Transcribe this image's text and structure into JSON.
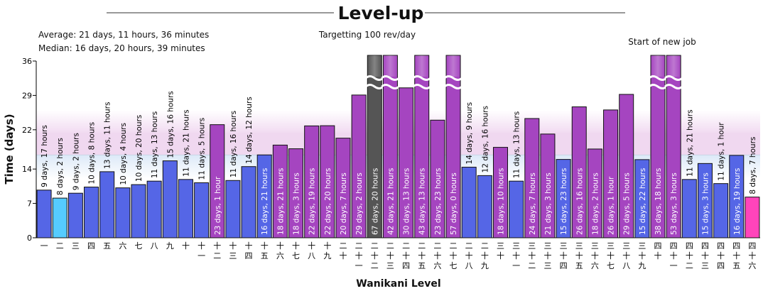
{
  "chart_data": {
    "type": "bar",
    "title": "Level-up",
    "xlabel": "Wanikani Level",
    "ylabel": "Time (days)",
    "ylim": [
      0,
      36
    ],
    "yticks": [
      "0",
      "7",
      "14",
      "22",
      "29",
      "36"
    ],
    "stats": {
      "average": "Average: 21 days, 11 hours, 36 minutes",
      "median": "Median: 16 days, 20 hours, 39 minutes"
    },
    "annotations": {
      "target": "Targetting 100 rev/day",
      "new_job": "Start of new job"
    },
    "colors": {
      "fast": "#5566e6",
      "slow": "#a545c0",
      "max": "#555555",
      "current": "#ff44bb",
      "fastest": "#55ccff",
      "average_band": "#f0d8f0",
      "median_band": "#d8e8f8"
    },
    "bars": [
      {
        "level": "一",
        "days": 9.71,
        "label": "9 days, 17 hours",
        "cat": "fast"
      },
      {
        "level": "二",
        "days": 8.08,
        "label": "8 days, 2 hours",
        "cat": "fastest"
      },
      {
        "level": "三",
        "days": 9.08,
        "label": "9 days, 2 hours",
        "cat": "fast"
      },
      {
        "level": "四",
        "days": 10.33,
        "label": "10 days, 8 hours",
        "cat": "fast"
      },
      {
        "level": "五",
        "days": 13.46,
        "label": "13 days, 11 hours",
        "cat": "fast"
      },
      {
        "level": "六",
        "days": 10.17,
        "label": "10 days, 4 hours",
        "cat": "fast"
      },
      {
        "level": "七",
        "days": 10.83,
        "label": "10 days, 20 hours",
        "cat": "fast"
      },
      {
        "level": "八",
        "days": 11.54,
        "label": "11 days, 13 hours",
        "cat": "fast"
      },
      {
        "level": "九",
        "days": 15.67,
        "label": "15 days, 16 hours",
        "cat": "fast"
      },
      {
        "level": "十",
        "days": 11.88,
        "label": "11 days, 21 hours",
        "cat": "fast"
      },
      {
        "level": "十一",
        "days": 11.21,
        "label": "11 days, 5 hours",
        "cat": "fast"
      },
      {
        "level": "十二",
        "days": 23.04,
        "label": "23 days, 1 hour",
        "cat": "slow"
      },
      {
        "level": "十三",
        "days": 11.67,
        "label": "11 days, 16 hours",
        "cat": "fast"
      },
      {
        "level": "十四",
        "days": 14.5,
        "label": "14 days, 12 hours",
        "cat": "fast"
      },
      {
        "level": "十五",
        "days": 16.88,
        "label": "16 days, 21 hours",
        "cat": "fast"
      },
      {
        "level": "十六",
        "days": 18.88,
        "label": "18 days, 21 hours",
        "cat": "slow"
      },
      {
        "level": "十七",
        "days": 18.13,
        "label": "18 days, 3 hours",
        "cat": "slow"
      },
      {
        "level": "十八",
        "days": 22.79,
        "label": "22 days, 19 hours",
        "cat": "slow"
      },
      {
        "level": "十九",
        "days": 22.83,
        "label": "22 days, 20 hours",
        "cat": "slow"
      },
      {
        "level": "二十",
        "days": 20.29,
        "label": "20 days, 7 hours",
        "cat": "slow"
      },
      {
        "level": "二十一",
        "days": 29.08,
        "label": "29 days, 2 hours",
        "cat": "slow"
      },
      {
        "level": "二十二",
        "days": 67.83,
        "label": "67 days, 20 hours",
        "cat": "max"
      },
      {
        "level": "二十三",
        "days": 42.88,
        "label": "42 days, 21 hours",
        "cat": "slow"
      },
      {
        "level": "二十四",
        "days": 30.54,
        "label": "30 days, 13 hours",
        "cat": "slow"
      },
      {
        "level": "二十五",
        "days": 43.54,
        "label": "43 days, 13 hours",
        "cat": "slow"
      },
      {
        "level": "二十六",
        "days": 23.96,
        "label": "23 days, 23 hours",
        "cat": "slow"
      },
      {
        "level": "二十七",
        "days": 57.0,
        "label": "57 days, 0 hours",
        "cat": "slow"
      },
      {
        "level": "二十八",
        "days": 14.38,
        "label": "14 days, 9 hours",
        "cat": "fast"
      },
      {
        "level": "二十九",
        "days": 12.67,
        "label": "12 days, 16 hours",
        "cat": "fast"
      },
      {
        "level": "三十",
        "days": 18.42,
        "label": "18 days, 10 hours",
        "cat": "slow"
      },
      {
        "level": "三十一",
        "days": 11.54,
        "label": "11 days, 13 hours",
        "cat": "fast"
      },
      {
        "level": "三十二",
        "days": 24.29,
        "label": "24 days, 7 hours",
        "cat": "slow"
      },
      {
        "level": "三十三",
        "days": 21.13,
        "label": "21 days, 3 hours",
        "cat": "slow"
      },
      {
        "level": "三十四",
        "days": 15.96,
        "label": "15 days, 23 hours",
        "cat": "fast"
      },
      {
        "level": "三十五",
        "days": 26.67,
        "label": "26 days, 16 hours",
        "cat": "slow"
      },
      {
        "level": "三十六",
        "days": 18.08,
        "label": "18 days, 2 hours",
        "cat": "slow"
      },
      {
        "level": "三十七",
        "days": 26.04,
        "label": "26 days, 1 hour",
        "cat": "slow"
      },
      {
        "level": "三十八",
        "days": 29.21,
        "label": "29 days, 5 hours",
        "cat": "slow"
      },
      {
        "level": "三十九",
        "days": 15.92,
        "label": "15 days, 22 hours",
        "cat": "fast"
      },
      {
        "level": "四十",
        "days": 38.75,
        "label": "38 days, 18 hours",
        "cat": "slow"
      },
      {
        "level": "四十一",
        "days": 53.13,
        "label": "53 days, 3 hours",
        "cat": "slow"
      },
      {
        "level": "四十二",
        "days": 11.88,
        "label": "11 days, 21 hours",
        "cat": "fast"
      },
      {
        "level": "四十三",
        "days": 15.13,
        "label": "15 days, 3 hours",
        "cat": "fast"
      },
      {
        "level": "四十四",
        "days": 11.04,
        "label": "11 days, 1 hour",
        "cat": "fast"
      },
      {
        "level": "四十五",
        "days": 16.79,
        "label": "16 days, 19 hours",
        "cat": "fast"
      },
      {
        "level": "四十六",
        "days": 8.29,
        "label": "8 days, 7 hours",
        "cat": "current"
      }
    ]
  }
}
